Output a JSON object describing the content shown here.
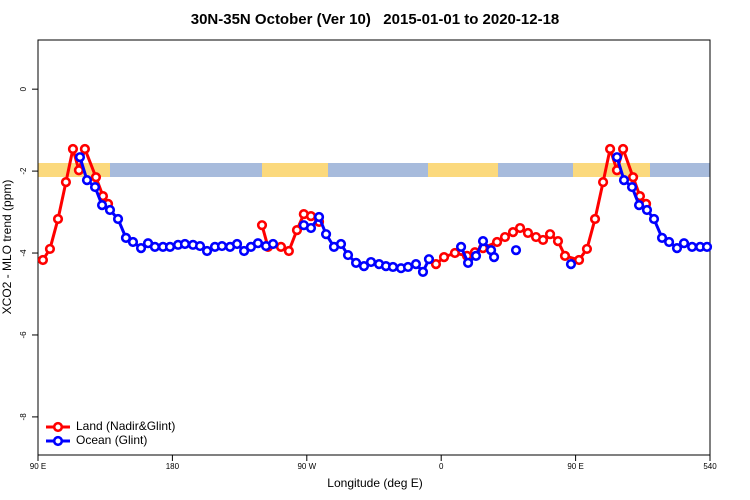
{
  "chart_data": {
    "type": "line",
    "title": "30N-35N October (Ver 10)   2015-01-01 to 2020-12-18",
    "x_label": "Longitude (deg E)",
    "y_label": "XCO2 - MLO trend (ppm)",
    "xlim": [
      90,
      540
    ],
    "ylim": [
      -8.93,
      1.2
    ],
    "xticks": [
      {
        "value": 90,
        "label": "90 E"
      },
      180,
      {
        "value": 270,
        "label": "90 W"
      },
      {
        "value": 360,
        "label": "0"
      },
      {
        "value": 450,
        "label": "90 E"
      },
      540
    ],
    "yticks": [
      0,
      -2,
      -4,
      -6,
      -8
    ],
    "legend": "bottom-left",
    "series": [
      {
        "name": "Land (Nadir&Glint)",
        "color": "#ff0000",
        "x": [
          93.3,
          98,
          103.4,
          108.7,
          113.4,
          117.4,
          121.4,
          128.8,
          133.5,
          136.9,
          null,
          240,
          244,
          252.7,
          258,
          263.4,
          268,
          272.8,
          278.2,
          null,
          356.5,
          361.9,
          369.2,
          377.3,
          382.6,
          388,
          397.4,
          402.7,
          408.1,
          412.8,
          418.1,
          423.5,
          428.2,
          432.9,
          438.2,
          442.9,
          452.3,
          457.6,
          463,
          468.4,
          473.1,
          477.7,
          481.8,
          488.5,
          493.1,
          497.2
        ],
        "values": [
          -4.17,
          -3.9,
          -3.17,
          -2.27,
          -1.46,
          -1.98,
          -1.46,
          -2.15,
          -2.61,
          -2.8,
          null,
          -3.32,
          -3.85,
          -3.85,
          -3.95,
          -3.44,
          -3.05,
          -3.1,
          -3.24,
          null,
          -4.27,
          -4.1,
          -4.0,
          -4.07,
          -3.98,
          -3.88,
          -3.73,
          -3.61,
          -3.49,
          -3.39,
          -3.51,
          -3.61,
          -3.68,
          -3.54,
          -3.71,
          -4.07,
          -4.17,
          -3.9,
          -3.17,
          -2.27,
          -1.46,
          -1.98,
          -1.46,
          -2.15,
          -2.61,
          -2.8
        ]
      },
      {
        "name": "Ocean (Glint)",
        "color": "#0000ff",
        "x": [
          118.1,
          122.8,
          128.2,
          132.9,
          138.2,
          143.6,
          148.9,
          153.6,
          159,
          163.7,
          168.3,
          173.7,
          178.4,
          183.8,
          188.4,
          193.8,
          198.5,
          203.2,
          208.5,
          213.2,
          218.6,
          223.3,
          228,
          232.6,
          237.3,
          242.7,
          247.4,
          null,
          268,
          272.8,
          278.2,
          282.9,
          288.2,
          292.9,
          297.6,
          303,
          308.3,
          313,
          318.4,
          323,
          327.7,
          333.1,
          337.8,
          343.1,
          347.8,
          351.8,
          null,
          373.3,
          378,
          383.3,
          388,
          393.4,
          395.4,
          null,
          410.1,
          null,
          446.9,
          null,
          477.7,
          482.4,
          487.8,
          492.5,
          497.8,
          502.5,
          507.9,
          512.6,
          517.9,
          522.6,
          528,
          533.4,
          538
        ],
        "values": [
          -1.66,
          -2.22,
          -2.39,
          -2.83,
          -2.95,
          -3.17,
          -3.63,
          -3.73,
          -3.88,
          -3.76,
          -3.85,
          -3.85,
          -3.85,
          -3.8,
          -3.78,
          -3.8,
          -3.83,
          -3.95,
          -3.85,
          -3.83,
          -3.85,
          -3.78,
          -3.95,
          -3.85,
          -3.76,
          -3.83,
          -3.78,
          null,
          -3.32,
          -3.39,
          -3.12,
          -3.54,
          -3.85,
          -3.78,
          -4.05,
          -4.24,
          -4.32,
          -4.22,
          -4.27,
          -4.32,
          -4.34,
          -4.37,
          -4.34,
          -4.27,
          -4.46,
          -4.15,
          null,
          -3.85,
          -4.24,
          -4.07,
          -3.71,
          -3.93,
          -4.1,
          null,
          -3.93,
          null,
          -4.27,
          null,
          -1.66,
          -2.22,
          -2.39,
          -2.83,
          -2.95,
          -3.17,
          -3.63,
          -3.73,
          -3.88,
          -3.76,
          -3.85,
          -3.85,
          -3.85
        ]
      }
    ]
  }
}
